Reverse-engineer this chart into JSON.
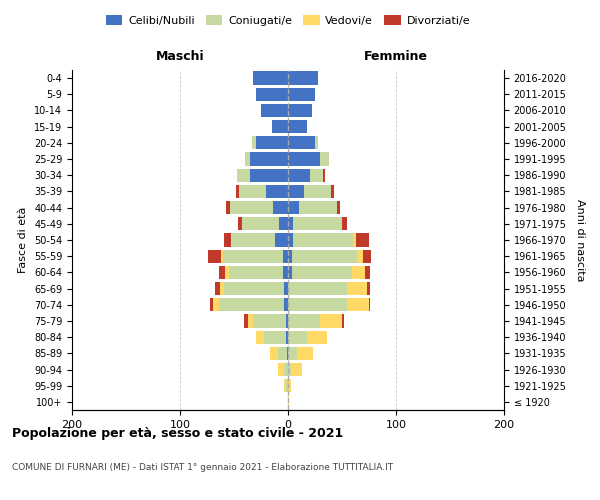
{
  "age_groups": [
    "100+",
    "95-99",
    "90-94",
    "85-89",
    "80-84",
    "75-79",
    "70-74",
    "65-69",
    "60-64",
    "55-59",
    "50-54",
    "45-49",
    "40-44",
    "35-39",
    "30-34",
    "25-29",
    "20-24",
    "15-19",
    "10-14",
    "5-9",
    "0-4"
  ],
  "birth_years": [
    "≤ 1920",
    "1921-1925",
    "1926-1930",
    "1931-1935",
    "1936-1940",
    "1941-1945",
    "1946-1950",
    "1951-1955",
    "1956-1960",
    "1961-1965",
    "1966-1970",
    "1971-1975",
    "1976-1980",
    "1981-1985",
    "1986-1990",
    "1991-1995",
    "1996-2000",
    "2001-2005",
    "2006-2010",
    "2011-2015",
    "2016-2020"
  ],
  "colors": {
    "celibi": "#4472c4",
    "coniugati": "#c5d9a0",
    "vedovi": "#ffd966",
    "divorziati": "#c0392b"
  },
  "maschi": {
    "celibi": [
      0,
      0,
      0,
      1,
      2,
      2,
      4,
      4,
      5,
      5,
      12,
      8,
      14,
      20,
      35,
      35,
      30,
      15,
      25,
      30,
      32
    ],
    "coniugati": [
      0,
      2,
      4,
      8,
      20,
      30,
      60,
      55,
      50,
      55,
      40,
      35,
      40,
      25,
      12,
      5,
      3,
      0,
      0,
      0,
      0
    ],
    "vedovi": [
      0,
      2,
      5,
      8,
      8,
      5,
      5,
      4,
      3,
      2,
      1,
      0,
      0,
      0,
      0,
      0,
      0,
      0,
      0,
      0,
      0
    ],
    "divorziati": [
      0,
      0,
      0,
      0,
      0,
      4,
      3,
      5,
      6,
      12,
      6,
      3,
      3,
      3,
      0,
      0,
      0,
      0,
      0,
      0,
      0
    ]
  },
  "femmine": {
    "celibi": [
      0,
      0,
      0,
      0,
      0,
      0,
      0,
      0,
      4,
      4,
      5,
      5,
      10,
      15,
      20,
      30,
      25,
      18,
      22,
      25,
      28
    ],
    "coniugati": [
      0,
      0,
      3,
      8,
      18,
      30,
      55,
      55,
      55,
      60,
      55,
      45,
      35,
      25,
      12,
      8,
      3,
      0,
      0,
      0,
      0
    ],
    "vedovi": [
      1,
      3,
      10,
      15,
      18,
      20,
      20,
      18,
      12,
      5,
      3,
      0,
      0,
      0,
      0,
      0,
      0,
      0,
      0,
      0,
      0
    ],
    "divorziati": [
      0,
      0,
      0,
      0,
      0,
      2,
      1,
      3,
      5,
      8,
      12,
      5,
      3,
      3,
      2,
      0,
      0,
      0,
      0,
      0,
      0
    ]
  },
  "xlim": 200,
  "title": "Popolazione per età, sesso e stato civile - 2021",
  "subtitle": "COMUNE DI FURNARI (ME) - Dati ISTAT 1° gennaio 2021 - Elaborazione TUTTITALIA.IT",
  "ylabel_left": "Fasce di età",
  "ylabel_right": "Anni di nascita",
  "xlabel_left": "Maschi",
  "xlabel_right": "Femmine",
  "bg_color": "#ffffff",
  "grid_color": "#cccccc",
  "bar_height": 0.82
}
